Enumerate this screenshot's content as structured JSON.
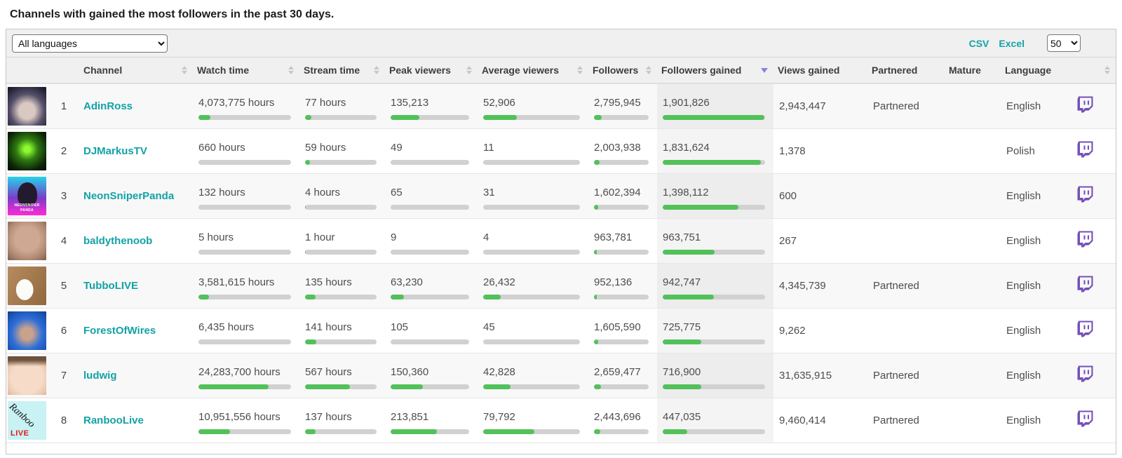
{
  "page": {
    "title": "Channels with gained the most followers in the past 30 days."
  },
  "toolbar": {
    "language_filter": {
      "selected": "All languages"
    },
    "csv_label": "CSV",
    "excel_label": "Excel",
    "page_size": {
      "selected": "50"
    }
  },
  "colors": {
    "accent_teal": "#12a2a6",
    "bar_green": "#52c15a",
    "bar_track": "#d1d1d1",
    "twitch_purple": "#7450b9",
    "sort_active_arrow": "#8585de"
  },
  "table": {
    "sorted_column": "Followers gained",
    "sort_direction": "desc",
    "columns": [
      {
        "label": "Channel",
        "sortable": true
      },
      {
        "label": "Watch time",
        "sortable": true
      },
      {
        "label": "Stream time",
        "sortable": true
      },
      {
        "label": "Peak viewers",
        "sortable": true
      },
      {
        "label": "Average viewers",
        "sortable": true
      },
      {
        "label": "Followers",
        "sortable": true
      },
      {
        "label": "Followers gained",
        "sortable": true,
        "sorted": "desc"
      },
      {
        "label": "Views gained",
        "sortable": false
      },
      {
        "label": "Partnered",
        "sortable": false
      },
      {
        "label": "Mature",
        "sortable": false
      },
      {
        "label": "Language",
        "sortable": false
      }
    ],
    "rows": [
      {
        "rank": 1,
        "channel": "AdinRoss",
        "watch_time": {
          "text": "4,073,775 hours",
          "pct": 13
        },
        "stream_time": {
          "text": "77 hours",
          "pct": 9
        },
        "peak_viewers": {
          "text": "135,213",
          "pct": 37
        },
        "average_viewers": {
          "text": "52,906",
          "pct": 35
        },
        "followers": {
          "text": "2,795,945",
          "pct": 14
        },
        "followers_gained": {
          "text": "1,901,826",
          "pct": 99
        },
        "views_gained": "2,943,447",
        "partnered": "Partnered",
        "mature": "",
        "language": "English"
      },
      {
        "rank": 2,
        "channel": "DJMarkusTV",
        "watch_time": {
          "text": "660 hours",
          "pct": 0
        },
        "stream_time": {
          "text": "59 hours",
          "pct": 7
        },
        "peak_viewers": {
          "text": "49",
          "pct": 0
        },
        "average_viewers": {
          "text": "11",
          "pct": 0
        },
        "followers": {
          "text": "2,003,938",
          "pct": 10
        },
        "followers_gained": {
          "text": "1,831,624",
          "pct": 96
        },
        "views_gained": "1,378",
        "partnered": "",
        "mature": "",
        "language": "Polish"
      },
      {
        "rank": 3,
        "channel": "NeonSniperPanda",
        "avatar_text": [
          "NEONSNIPER",
          "PANDA"
        ],
        "watch_time": {
          "text": "132 hours",
          "pct": 0
        },
        "stream_time": {
          "text": "4 hours",
          "pct": 1
        },
        "peak_viewers": {
          "text": "65",
          "pct": 0
        },
        "average_viewers": {
          "text": "31",
          "pct": 0
        },
        "followers": {
          "text": "1,602,394",
          "pct": 8
        },
        "followers_gained": {
          "text": "1,398,112",
          "pct": 74
        },
        "views_gained": "600",
        "partnered": "",
        "mature": "",
        "language": "English"
      },
      {
        "rank": 4,
        "channel": "baldythenoob",
        "watch_time": {
          "text": "5 hours",
          "pct": 0
        },
        "stream_time": {
          "text": "1 hour",
          "pct": 1
        },
        "peak_viewers": {
          "text": "9",
          "pct": 0
        },
        "average_viewers": {
          "text": "4",
          "pct": 0
        },
        "followers": {
          "text": "963,781",
          "pct": 5
        },
        "followers_gained": {
          "text": "963,751",
          "pct": 51
        },
        "views_gained": "267",
        "partnered": "",
        "mature": "",
        "language": "English"
      },
      {
        "rank": 5,
        "channel": "TubboLIVE",
        "watch_time": {
          "text": "3,581,615 hours",
          "pct": 11
        },
        "stream_time": {
          "text": "135 hours",
          "pct": 15
        },
        "peak_viewers": {
          "text": "63,230",
          "pct": 17
        },
        "average_viewers": {
          "text": "26,432",
          "pct": 18
        },
        "followers": {
          "text": "952,136",
          "pct": 5
        },
        "followers_gained": {
          "text": "942,747",
          "pct": 50
        },
        "views_gained": "4,345,739",
        "partnered": "Partnered",
        "mature": "",
        "language": "English"
      },
      {
        "rank": 6,
        "channel": "ForestOfWires",
        "watch_time": {
          "text": "6,435 hours",
          "pct": 0
        },
        "stream_time": {
          "text": "141 hours",
          "pct": 16
        },
        "peak_viewers": {
          "text": "105",
          "pct": 0
        },
        "average_viewers": {
          "text": "45",
          "pct": 0
        },
        "followers": {
          "text": "1,605,590",
          "pct": 8
        },
        "followers_gained": {
          "text": "725,775",
          "pct": 38
        },
        "views_gained": "9,262",
        "partnered": "",
        "mature": "",
        "language": "English"
      },
      {
        "rank": 7,
        "channel": "ludwig",
        "watch_time": {
          "text": "24,283,700 hours",
          "pct": 76
        },
        "stream_time": {
          "text": "567 hours",
          "pct": 63
        },
        "peak_viewers": {
          "text": "150,360",
          "pct": 41
        },
        "average_viewers": {
          "text": "42,828",
          "pct": 28
        },
        "followers": {
          "text": "2,659,477",
          "pct": 13
        },
        "followers_gained": {
          "text": "716,900",
          "pct": 38
        },
        "views_gained": "31,635,915",
        "partnered": "Partnered",
        "mature": "",
        "language": "English"
      },
      {
        "rank": 8,
        "channel": "RanbooLive",
        "avatar_text": [
          "Ranboo",
          "LIVE"
        ],
        "watch_time": {
          "text": "10,951,556 hours",
          "pct": 34
        },
        "stream_time": {
          "text": "137 hours",
          "pct": 15
        },
        "peak_viewers": {
          "text": "213,851",
          "pct": 59
        },
        "average_viewers": {
          "text": "79,792",
          "pct": 53
        },
        "followers": {
          "text": "2,443,696",
          "pct": 12
        },
        "followers_gained": {
          "text": "447,035",
          "pct": 24
        },
        "views_gained": "9,460,414",
        "partnered": "Partnered",
        "mature": "",
        "language": "English"
      }
    ]
  }
}
